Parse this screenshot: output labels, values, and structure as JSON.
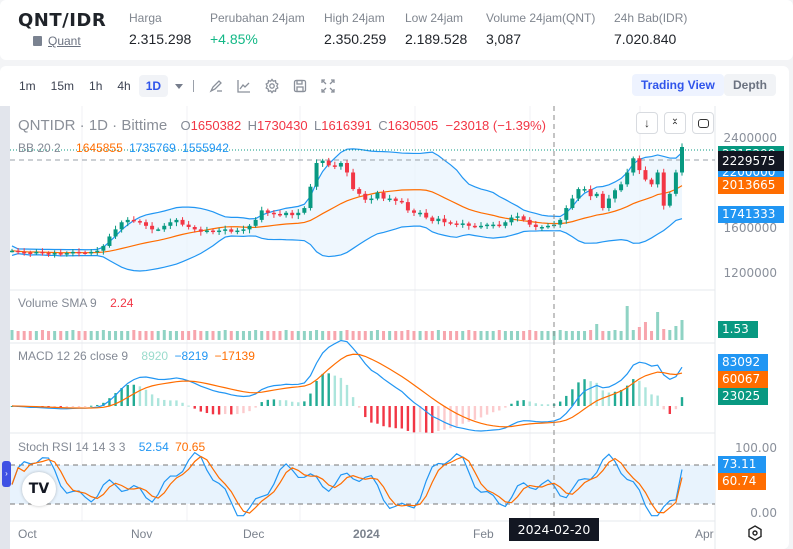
{
  "ticker": {
    "pair": "QNT/IDR",
    "asset_link": "Quant",
    "stats": [
      {
        "label": "Harga",
        "value": "2.315.298",
        "trend": "neutral"
      },
      {
        "label": "Perubahan 24jam",
        "value": "+4.85%",
        "trend": "up"
      },
      {
        "label": "High 24jam",
        "value": "2.350.259",
        "trend": "neutral"
      },
      {
        "label": "Low 24jam",
        "value": "2.189.528",
        "trend": "neutral"
      },
      {
        "label": "Volume 24jam(QNT)",
        "value": "3,087",
        "trend": "neutral"
      },
      {
        "label": "24h Bab(IDR)",
        "value": "7.020.840",
        "trend": "neutral"
      }
    ]
  },
  "toolbar": {
    "timeframes": [
      "1m",
      "15m",
      "1h",
      "4h",
      "1D"
    ],
    "active_timeframe": "1D",
    "tools": [
      "draw-icon",
      "indicator-icon",
      "settings-icon",
      "save-icon",
      "fullscreen-icon"
    ],
    "views": {
      "trading_view": "Trading View",
      "depth": "Depth"
    }
  },
  "legend": {
    "symbol": "QNTIDR · 1D · Bittime",
    "ohlc": {
      "o_label": "O",
      "o": "1650382",
      "h_label": "H",
      "h": "1730430",
      "l_label": "L",
      "l": "1616391",
      "c_label": "C",
      "c": "1630505",
      "change": "−23018 (−1.39%)"
    },
    "bb": {
      "label": "BB 20 2",
      "basis": "1645855",
      "upper": "1735769",
      "lower": "1555942"
    },
    "volume": {
      "label": "Volume SMA 9",
      "value": "2.24"
    },
    "macd": {
      "label": "MACD 12 26 close 9",
      "hist": "8920",
      "macd": "−8219",
      "signal": "−17139"
    },
    "stoch": {
      "label": "Stoch RSI 14 14 3 3",
      "k": "52.54",
      "d": "70.65"
    }
  },
  "price_axis": {
    "ticks": [
      "2400000",
      "1600000",
      "1200000"
    ],
    "tags": [
      {
        "value": "2315298",
        "color": "#089981"
      },
      {
        "value": "2229575",
        "color": "#131722"
      },
      {
        "value": "2200000",
        "color": "#2196f3"
      },
      {
        "value": "2013665",
        "color": "#ff6d00"
      },
      {
        "value": "1741333",
        "color": "#2196f3"
      }
    ]
  },
  "volume_axis": {
    "tag": "1.53",
    "tag_color": "#089981"
  },
  "macd_axis": {
    "tags": [
      {
        "value": "83092",
        "color": "#2196f3"
      },
      {
        "value": "60067",
        "color": "#ff6d00"
      },
      {
        "value": "23025",
        "color": "#089981"
      }
    ]
  },
  "stoch_axis": {
    "ticks": [
      "100.00",
      "0.00"
    ],
    "tags": [
      {
        "value": "73.11",
        "color": "#2196f3"
      },
      {
        "value": "60.74",
        "color": "#ff6d00"
      }
    ]
  },
  "time_axis": {
    "labels": [
      "Oct",
      "Nov",
      "Dec",
      "2024",
      "Feb",
      "Mar",
      "Apr"
    ],
    "crosshair_date": "2024-02-20"
  },
  "colors": {
    "up": "#089981",
    "down": "#f23645",
    "bb": "#2196f3",
    "basis": "#ff6d00",
    "accent": "#2f54eb"
  },
  "chart_data": {
    "type": "candlestick",
    "title": "QNTIDR · 1D · Bittime",
    "x_labels": [
      "Oct",
      "Nov",
      "Dec",
      "2024",
      "Feb",
      "Mar",
      "Apr"
    ],
    "ylim": [
      1100000,
      2450000
    ],
    "close_approx": [
      1440000,
      1430000,
      1425000,
      1420000,
      1430000,
      1420000,
      1415000,
      1420000,
      1410000,
      1420000,
      1430000,
      1425000,
      1420000,
      1430000,
      1440000,
      1480000,
      1560000,
      1620000,
      1680000,
      1700000,
      1690000,
      1680000,
      1650000,
      1620000,
      1620000,
      1650000,
      1680000,
      1700000,
      1660000,
      1640000,
      1620000,
      1600000,
      1610000,
      1600000,
      1610000,
      1620000,
      1600000,
      1610000,
      1620000,
      1650000,
      1700000,
      1780000,
      1760000,
      1750000,
      1740000,
      1760000,
      1740000,
      1760000,
      1800000,
      1980000,
      2180000,
      2200000,
      2160000,
      2150000,
      2180000,
      2100000,
      1960000,
      1920000,
      1870000,
      1880000,
      1930000,
      1880000,
      1880000,
      1860000,
      1850000,
      1780000,
      1760000,
      1760000,
      1720000,
      1690000,
      1710000,
      1680000,
      1670000,
      1660000,
      1670000,
      1650000,
      1645000,
      1650000,
      1660000,
      1660000,
      1650000,
      1680000,
      1720000,
      1730000,
      1700000,
      1660000,
      1640000,
      1640000,
      1650000,
      1660000,
      1700000,
      1800000,
      1880000,
      1960000,
      1960000,
      1900000,
      1920000,
      1800000,
      1880000,
      1950000,
      2000000,
      2100000,
      2220000,
      2120000,
      2040000,
      2000000,
      2100000,
      1820000,
      1920000,
      2100000,
      2315000
    ],
    "series": [
      {
        "name": "BB basis (20)",
        "last": 2013665
      },
      {
        "name": "BB upper",
        "last": 2229575
      },
      {
        "name": "BB lower",
        "last": 1741333
      },
      {
        "name": "Volume SMA 9",
        "last": 1.53
      },
      {
        "name": "MACD",
        "last": 83092
      },
      {
        "name": "Signal",
        "last": 60067
      },
      {
        "name": "Histogram",
        "last": 23025
      },
      {
        "name": "Stoch RSI %K",
        "last": 73.11
      },
      {
        "name": "Stoch RSI %D",
        "last": 60.74
      }
    ],
    "stoch_levels": [
      80,
      20
    ]
  }
}
